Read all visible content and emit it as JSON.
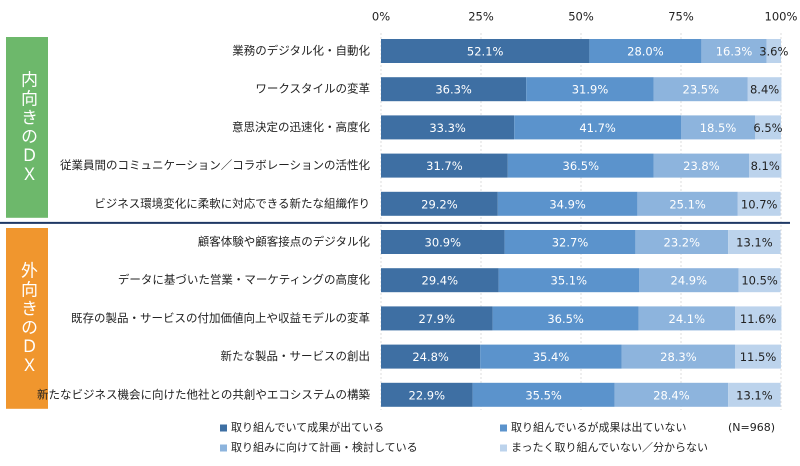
{
  "chart_data": {
    "type": "stacked-bar-horizontal",
    "categories": [
      "業務のデジタル化・自動化",
      "ワークスタイルの変革",
      "意思決定の迅速化・高度化",
      "従業員間のコミュニケーション／コラボレーションの活性化",
      "ビジネス環境変化に柔軟に対応できる新たな組織作り",
      "顧客体験や顧客接点のデジタル化",
      "データに基づいた営業・マーケティングの高度化",
      "既存の製品・サービスの付加価値向上や収益モデルの変革",
      "新たな製品・サービスの創出",
      "新たなビジネス機会に向けた他社との共創やエコシステムの構築"
    ],
    "groups": [
      "内向きのＤＸ",
      "外向きのＤＸ"
    ],
    "series": [
      {
        "name": "取り組んでいて成果が出ている",
        "color": "#3e6fa3",
        "values": [
          52.1,
          36.3,
          33.3,
          31.7,
          29.2,
          30.9,
          29.4,
          27.9,
          24.8,
          22.9
        ],
        "value_labels": [
          "52.1%",
          "36.3%",
          "33.3%",
          "31.7%",
          "29.2%",
          "30.9%",
          "29.4%",
          "27.9%",
          "24.8%",
          "22.9%"
        ]
      },
      {
        "name": "取り組んでいるが成果は出ていない",
        "color": "#5b93cc",
        "values": [
          28.0,
          31.9,
          41.7,
          36.5,
          34.9,
          32.7,
          35.1,
          36.5,
          35.4,
          35.5
        ],
        "value_labels": [
          "28.0%",
          "31.9%",
          "41.7%",
          "36.5%",
          "34.9%",
          "32.7%",
          "35.1%",
          "36.5%",
          "35.4%",
          "35.5%"
        ]
      },
      {
        "name": "取り組みに向けて計画・検討している",
        "color": "#8db4dd",
        "values": [
          16.3,
          23.5,
          18.5,
          23.8,
          25.1,
          23.2,
          24.9,
          24.1,
          28.3,
          28.4
        ],
        "value_labels": [
          "16.3%",
          "23.5%",
          "18.5%",
          "23.8%",
          "25.1%",
          "23.2%",
          "24.9%",
          "24.1%",
          "28.3%",
          "28.4%"
        ]
      },
      {
        "name": "まったく取り組んでいない／分からない",
        "color": "#bcd3ec",
        "values": [
          3.6,
          8.4,
          6.5,
          8.1,
          10.7,
          13.1,
          10.5,
          11.6,
          11.5,
          13.1
        ],
        "value_labels": [
          "3.6%",
          "8.4%",
          "6.5%",
          "8.1%",
          "10.7%",
          "13.1%",
          "10.5%",
          "11.6%",
          "11.5%",
          "13.1%"
        ]
      }
    ],
    "xlim": [
      0,
      100
    ],
    "xticks": [
      {
        "value": 0,
        "label": "0%"
      },
      {
        "value": 25,
        "label": "25%"
      },
      {
        "value": 50,
        "label": "50%"
      },
      {
        "value": 75,
        "label": "75%"
      },
      {
        "value": 100,
        "label": "100%"
      }
    ],
    "grid": true,
    "note": "(N=968)"
  }
}
